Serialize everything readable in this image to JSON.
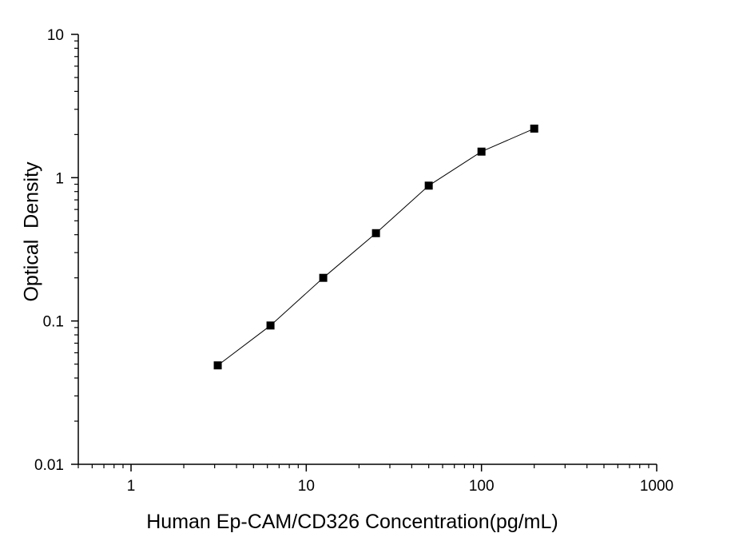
{
  "chart_data": {
    "type": "line",
    "title": "",
    "xlabel": "Human Ep-CAM/CD326 Concentration(pg/mL)",
    "ylabel": "Optical  Density",
    "x_scale": "log",
    "y_scale": "log",
    "xlim": [
      0.5,
      1000
    ],
    "ylim": [
      0.01,
      10
    ],
    "x_ticks": [
      {
        "value": 1,
        "label": "1"
      },
      {
        "value": 10,
        "label": "10"
      },
      {
        "value": 100,
        "label": "100"
      },
      {
        "value": 1000,
        "label": "1000"
      }
    ],
    "y_ticks": [
      {
        "value": 0.01,
        "label": "0.01"
      },
      {
        "value": 0.1,
        "label": "0.1"
      },
      {
        "value": 1,
        "label": "1"
      },
      {
        "value": 10,
        "label": "10"
      }
    ],
    "grid": false,
    "legend": "none",
    "series": [
      {
        "x": [
          3.125,
          6.25,
          12.5,
          25,
          50,
          100,
          200
        ],
        "y": [
          0.049,
          0.093,
          0.2,
          0.41,
          0.88,
          1.52,
          2.2
        ],
        "marker": "square",
        "color": "#000000"
      }
    ]
  }
}
